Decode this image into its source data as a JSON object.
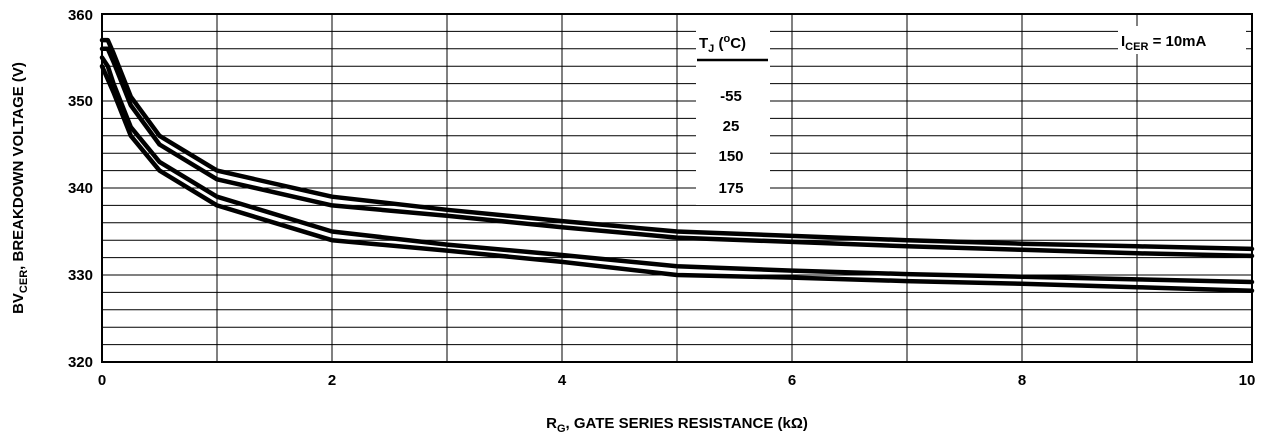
{
  "chart_data": {
    "type": "line",
    "xlabel": {
      "main": "R",
      "sub": "G",
      "rest": ", GATE SERIES RESISTANCE (kΩ)"
    },
    "ylabel": {
      "main": "BV",
      "sub": "CER",
      "rest": ", BREAKDOWN VOLTAGE (V)"
    },
    "xlim": [
      0,
      10
    ],
    "ylim": [
      320,
      360
    ],
    "xticks": [
      "0",
      "2",
      "4",
      "6",
      "8",
      "10"
    ],
    "yticks": [
      "320",
      "330",
      "340",
      "350",
      "360"
    ],
    "grid": true,
    "annotation": {
      "main": "I",
      "sub": "CER",
      "rest": " = 10mA"
    },
    "legend": {
      "title_main": "T",
      "title_sub": "J",
      "title_open": " (",
      "title_sup": "o",
      "title_close": "C)",
      "entries": [
        "-55",
        "25",
        "150",
        "175"
      ]
    },
    "series": [
      {
        "x": [
          0,
          0.05,
          0.1,
          0.25,
          0.5,
          1,
          2,
          3,
          4,
          5,
          6,
          7,
          8,
          9,
          10
        ],
        "values": [
          357,
          357,
          355.5,
          350.5,
          346,
          342,
          339,
          337.5,
          336.2,
          335,
          334.5,
          334,
          333.6,
          333.3,
          333
        ]
      },
      {
        "x": [
          0,
          0.05,
          0.1,
          0.25,
          0.5,
          1,
          2,
          3,
          4,
          5,
          6,
          7,
          8,
          9,
          10
        ],
        "values": [
          356,
          356,
          354.5,
          349.5,
          345,
          341,
          338,
          336.8,
          335.5,
          334.3,
          333.8,
          333.3,
          332.9,
          332.5,
          332.2
        ]
      },
      {
        "x": [
          0,
          0.05,
          0.1,
          0.25,
          0.5,
          1,
          2,
          3,
          4,
          5,
          6,
          7,
          8,
          9,
          10
        ],
        "values": [
          355,
          354,
          352,
          347,
          343,
          339,
          335,
          333.5,
          332.3,
          331,
          330.5,
          330.1,
          329.8,
          329.5,
          329.2
        ]
      },
      {
        "x": [
          0,
          0.05,
          0.1,
          0.25,
          0.5,
          1,
          2,
          3,
          4,
          5,
          6,
          7,
          8,
          9,
          10
        ],
        "values": [
          354,
          352.5,
          351,
          346,
          342,
          338,
          334,
          332.8,
          331.5,
          330,
          329.7,
          329.3,
          329,
          328.6,
          328.2
        ]
      }
    ]
  }
}
